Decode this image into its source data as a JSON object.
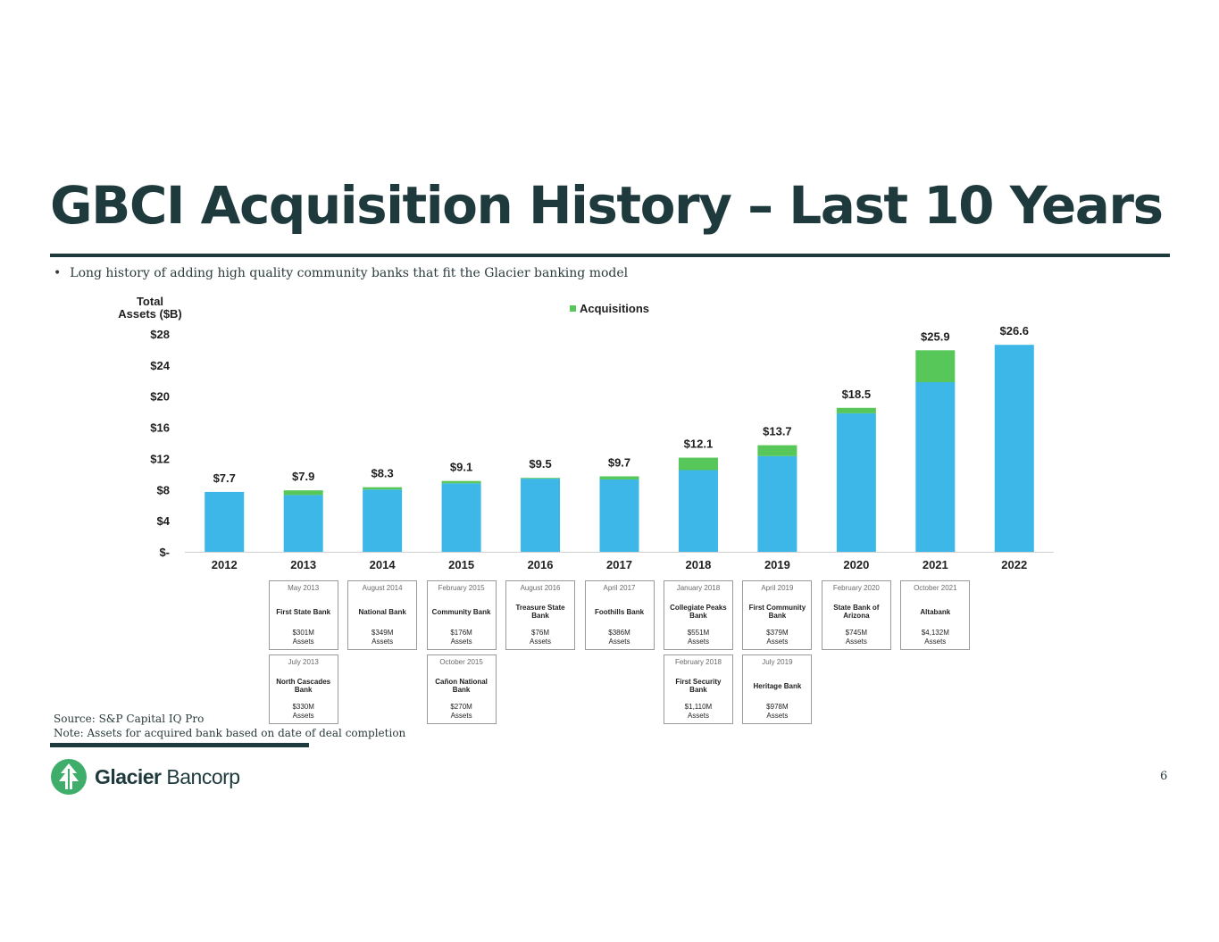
{
  "slide": {
    "title": "GBCI Acquisition History – Last 10 Years",
    "bullet_marker": "•",
    "bullet": "Long history of adding high quality community banks that fit the Glacier banking model",
    "source": "Source: S&P Capital IQ Pro",
    "note": "Note: Assets for acquired bank based on date of deal completion",
    "brand_bold": "Glacier",
    "brand_light": " Bancorp",
    "page_number": "6"
  },
  "colors": {
    "organic": "#3db6e8",
    "acquisition": "#57c75a",
    "title": "#1f3a3d"
  },
  "chart_data": {
    "type": "bar",
    "stacked": true,
    "ylabel": "Total\nAssets ($B)",
    "ylim": [
      0,
      28
    ],
    "yticks": [
      0,
      4,
      8,
      12,
      16,
      20,
      24,
      28
    ],
    "ytick_labels": [
      "$-",
      "$4",
      "$8",
      "$12",
      "$16",
      "$20",
      "$24",
      "$28"
    ],
    "categories": [
      "2012",
      "2013",
      "2014",
      "2015",
      "2016",
      "2017",
      "2018",
      "2019",
      "2020",
      "2021",
      "2022"
    ],
    "totals": [
      7.7,
      7.9,
      8.3,
      9.1,
      9.5,
      9.7,
      12.1,
      13.7,
      18.5,
      25.9,
      26.6
    ],
    "total_labels": [
      "$7.7",
      "$7.9",
      "$8.3",
      "$9.1",
      "$9.5",
      "$9.7",
      "$12.1",
      "$13.7",
      "$18.5",
      "$25.9",
      "$26.6"
    ],
    "series": [
      {
        "values": [
          7.7,
          7.3,
          8.0,
          8.8,
          9.4,
          9.3,
          10.5,
          12.3,
          17.8,
          21.8,
          26.6
        ]
      },
      {
        "name": "Acquisitions",
        "values": [
          0.0,
          0.6,
          0.3,
          0.3,
          0.1,
          0.4,
          1.6,
          1.4,
          0.7,
          4.1,
          0.0
        ]
      }
    ],
    "legend": "top-center",
    "grid": false
  },
  "deals": [
    {
      "col": 1,
      "row": 0,
      "date": "May 2013",
      "bank": "First State Bank",
      "assets": "$301M",
      "assets_label": "Assets"
    },
    {
      "col": 1,
      "row": 1,
      "date": "July 2013",
      "bank": "North Cascades Bank",
      "assets": "$330M",
      "assets_label": "Assets"
    },
    {
      "col": 2,
      "row": 0,
      "date": "August 2014",
      "bank": "National Bank",
      "assets": "$349M",
      "assets_label": "Assets"
    },
    {
      "col": 3,
      "row": 0,
      "date": "February 2015",
      "bank": "Community Bank",
      "assets": "$176M",
      "assets_label": "Assets"
    },
    {
      "col": 3,
      "row": 1,
      "date": "October 2015",
      "bank": "Cañon National Bank",
      "assets": "$270M",
      "assets_label": "Assets"
    },
    {
      "col": 4,
      "row": 0,
      "date": "August 2016",
      "bank": "Treasure State Bank",
      "assets": "$76M",
      "assets_label": "Assets"
    },
    {
      "col": 5,
      "row": 0,
      "date": "April 2017",
      "bank": "Foothills Bank",
      "assets": "$386M",
      "assets_label": "Assets"
    },
    {
      "col": 6,
      "row": 0,
      "date": "January 2018",
      "bank": "Collegiate Peaks Bank",
      "assets": "$551M",
      "assets_label": "Assets"
    },
    {
      "col": 6,
      "row": 1,
      "date": "February 2018",
      "bank": "First Security Bank",
      "assets": "$1,110M",
      "assets_label": "Assets"
    },
    {
      "col": 7,
      "row": 0,
      "date": "April 2019",
      "bank": "First Community Bank",
      "assets": "$379M",
      "assets_label": "Assets"
    },
    {
      "col": 7,
      "row": 1,
      "date": "July 2019",
      "bank": "Heritage Bank",
      "assets": "$978M",
      "assets_label": "Assets"
    },
    {
      "col": 8,
      "row": 0,
      "date": "February 2020",
      "bank": "State Bank of Arizona",
      "assets": "$745M",
      "assets_label": "Assets"
    },
    {
      "col": 9,
      "row": 0,
      "date": "October 2021",
      "bank": "Altabank",
      "assets": "$4,132M",
      "assets_label": "Assets"
    }
  ]
}
